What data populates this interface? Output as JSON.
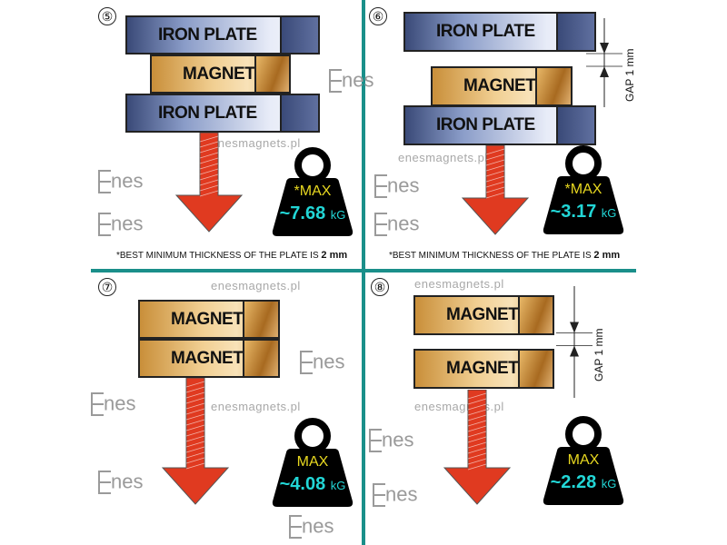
{
  "watermark_text": "enesmagnets.pl",
  "logo_text": "Enes",
  "colors": {
    "divider": "#1a8f8a",
    "arrow": "#e03a20",
    "max_label": "#e8d820",
    "value": "#22d6d6"
  },
  "panels": [
    {
      "number": "⑤",
      "layers": [
        {
          "type": "iron",
          "label": "IRON PLATE"
        },
        {
          "type": "magnet",
          "label": "MAGNET"
        },
        {
          "type": "iron",
          "label": "IRON PLATE"
        }
      ],
      "max_label": "*MAX",
      "value": "~7.68",
      "unit": "kG",
      "note": "*BEST MINIMUM THICKNESS OF THE PLATE IS ",
      "note_bold": "2 mm"
    },
    {
      "number": "⑥",
      "layers": [
        {
          "type": "iron",
          "label": "IRON PLATE"
        },
        {
          "type": "magnet",
          "label": "MAGNET"
        },
        {
          "type": "iron",
          "label": "IRON PLATE"
        }
      ],
      "gap": "GAP 1 mm",
      "max_label": "*MAX",
      "value": "~3.17",
      "unit": "kG",
      "note": "*BEST MINIMUM THICKNESS OF THE PLATE IS ",
      "note_bold": "2 mm"
    },
    {
      "number": "⑦",
      "layers": [
        {
          "type": "magnet",
          "label": "MAGNET"
        },
        {
          "type": "magnet",
          "label": "MAGNET"
        }
      ],
      "max_label": "MAX",
      "value": "~4.08",
      "unit": "kG"
    },
    {
      "number": "⑧",
      "layers": [
        {
          "type": "magnet",
          "label": "MAGNET"
        },
        {
          "type": "magnet",
          "label": "MAGNET"
        }
      ],
      "gap": "GAP 1 mm",
      "max_label": "MAX",
      "value": "~2.28",
      "unit": "kG"
    }
  ]
}
